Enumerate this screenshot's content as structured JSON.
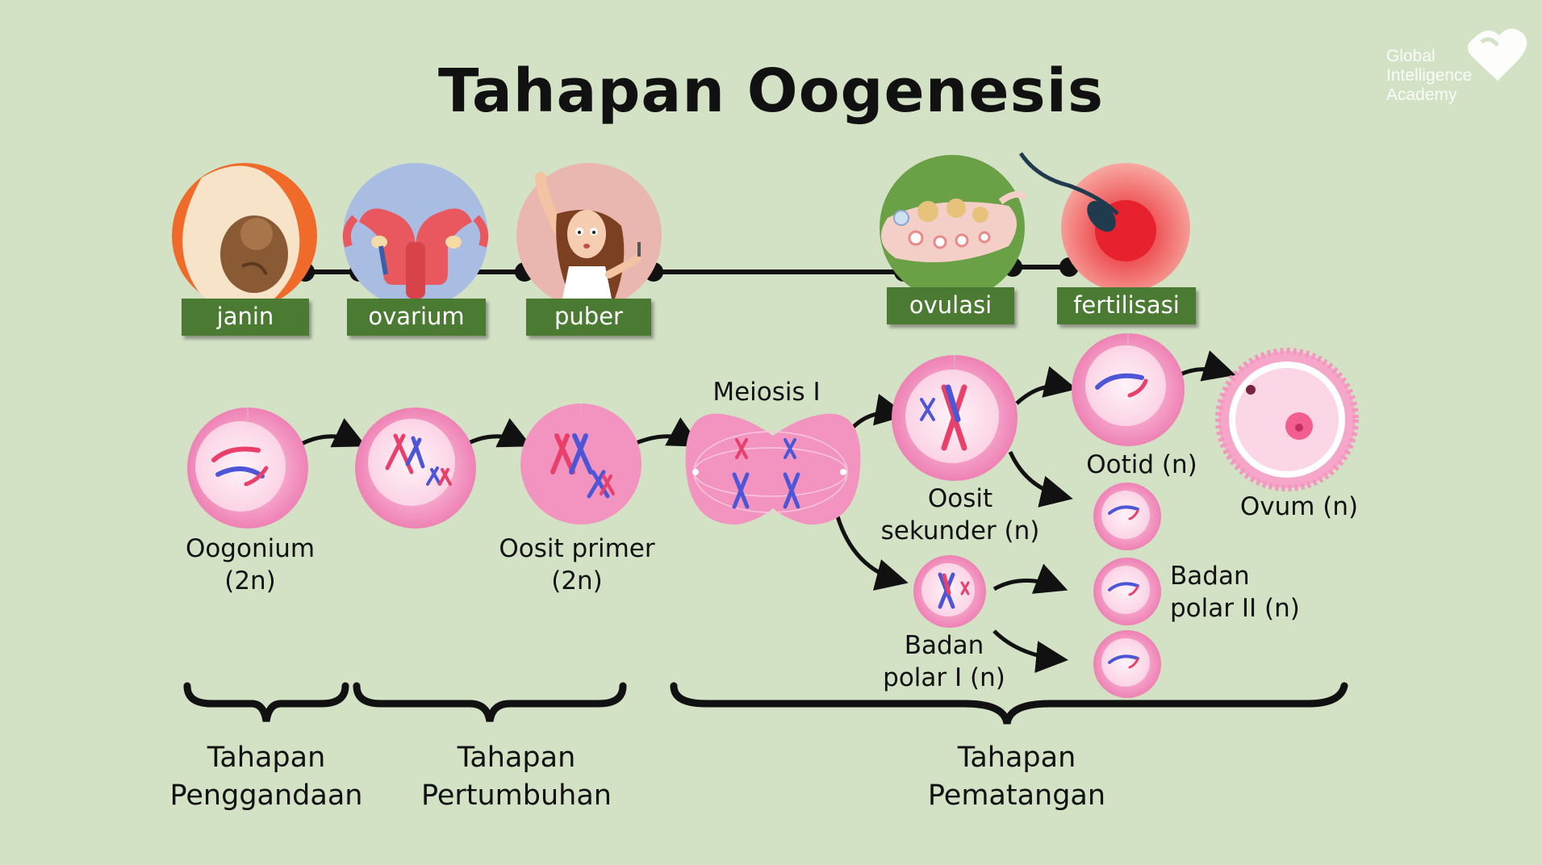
{
  "title": "Tahapan Oogenesis",
  "brand": {
    "line1": "Global",
    "line2": "Intelligence",
    "line3": "Academy"
  },
  "timeline": [
    {
      "id": "janin",
      "label": "janin"
    },
    {
      "id": "ovarium",
      "label": "ovarium"
    },
    {
      "id": "puber",
      "label": "puber"
    },
    {
      "id": "ovulasi",
      "label": "ovulasi"
    },
    {
      "id": "fertilisasi",
      "label": "fertilisasi"
    }
  ],
  "cells": {
    "oogonium": {
      "line1": "Oogonium",
      "line2": "(2n)"
    },
    "oosit_primer": {
      "line1": "Oosit primer",
      "line2": "(2n)"
    },
    "meiosis": {
      "label": "Meiosis I"
    },
    "oosit_sekunder": {
      "line1": "Oosit",
      "line2": "sekunder (n)"
    },
    "ootid": {
      "label": "Ootid (n)"
    },
    "ovum": {
      "label": "Ovum (n)"
    },
    "badan_polar_1": {
      "line1": "Badan",
      "line2": "polar I (n)"
    },
    "badan_polar_2": {
      "line1": "Badan",
      "line2": "polar II (n)"
    }
  },
  "stages": [
    {
      "line1": "Tahapan",
      "line2": "Penggandaan"
    },
    {
      "line1": "Tahapan",
      "line2": "Pertumbuhan"
    },
    {
      "line1": "Tahapan",
      "line2": "Pematangan"
    }
  ],
  "colors": {
    "background": "#d3e2c5",
    "label_green": "#4b7a33",
    "cell_pink": "#f59ac4",
    "chrom_blue": "#4d56d6",
    "chrom_red": "#e8406b"
  }
}
